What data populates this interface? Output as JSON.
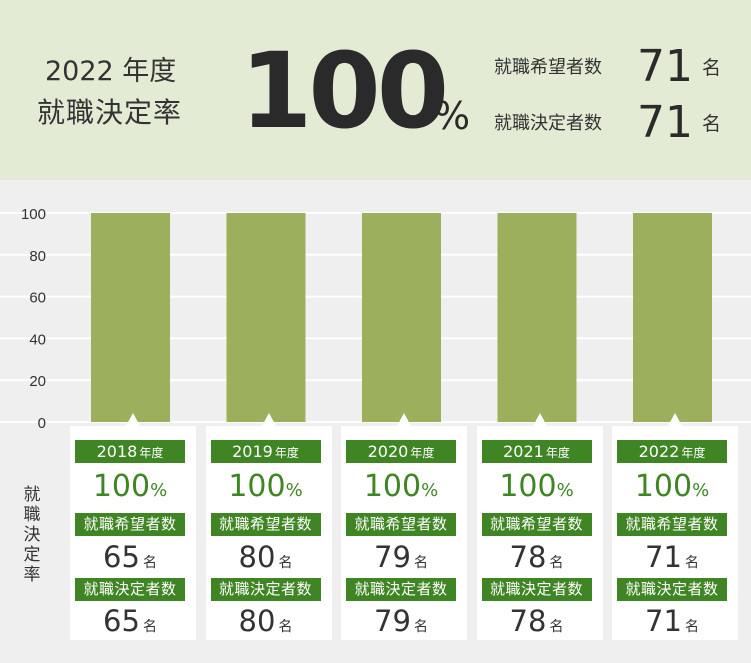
{
  "header": {
    "year_label": "2022 年度",
    "rate_label": "就職決定率",
    "rate_value": "100",
    "rate_unit": "%",
    "applicants_label": "就職希望者数",
    "applicants_value": "71",
    "applicants_unit": "名",
    "placed_label": "就職決定者数",
    "placed_value": "71",
    "placed_unit": "名"
  },
  "colors": {
    "bar": "#9caf5c",
    "tag": "#3f8523",
    "header_bg": "#e4ebd5",
    "chart_bg": "#efefef"
  },
  "chart_data": {
    "type": "bar",
    "categories": [
      "2018",
      "2019",
      "2020",
      "2021",
      "2022"
    ],
    "values": [
      100,
      100,
      100,
      100,
      100
    ],
    "ylabel": "就職決定率",
    "ylim": [
      0,
      100
    ],
    "yticks": [
      0,
      20,
      40,
      60,
      80,
      100
    ],
    "grid": true
  },
  "cards": [
    {
      "year": "2018",
      "year_unit": "年度",
      "rate": "100",
      "rate_unit": "%",
      "applicants_label": "就職希望者数",
      "applicants": "65",
      "placed_label": "就職決定者数",
      "placed": "65",
      "unit": "名"
    },
    {
      "year": "2019",
      "year_unit": "年度",
      "rate": "100",
      "rate_unit": "%",
      "applicants_label": "就職希望者数",
      "applicants": "80",
      "placed_label": "就職決定者数",
      "placed": "80",
      "unit": "名"
    },
    {
      "year": "2020",
      "year_unit": "年度",
      "rate": "100",
      "rate_unit": "%",
      "applicants_label": "就職希望者数",
      "applicants": "79",
      "placed_label": "就職決定者数",
      "placed": "79",
      "unit": "名"
    },
    {
      "year": "2021",
      "year_unit": "年度",
      "rate": "100",
      "rate_unit": "%",
      "applicants_label": "就職希望者数",
      "applicants": "78",
      "placed_label": "就職決定者数",
      "placed": "78",
      "unit": "名"
    },
    {
      "year": "2022",
      "year_unit": "年度",
      "rate": "100",
      "rate_unit": "%",
      "applicants_label": "就職希望者数",
      "applicants": "71",
      "placed_label": "就職決定者数",
      "placed": "71",
      "unit": "名"
    }
  ]
}
